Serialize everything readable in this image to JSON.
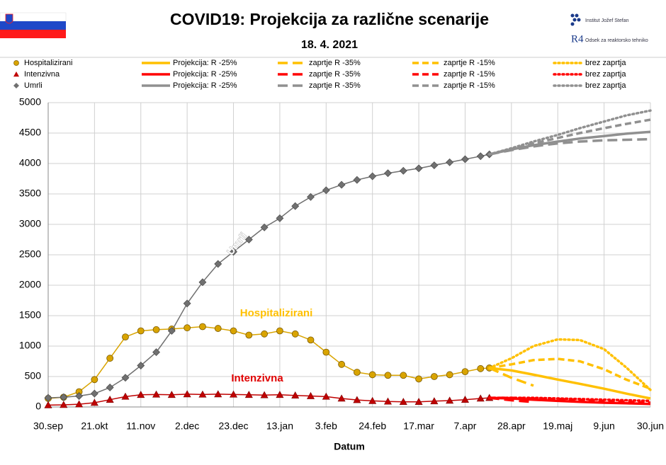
{
  "chart_data": {
    "type": "line",
    "title": "COVID19: Projekcija za različne scenarije",
    "subtitle": "18. 4. 2021",
    "logos": [
      "Institut Jožef Stefan",
      "Odsek za reaktorsko tehniko"
    ],
    "logo_mark": "R4",
    "x_label": "Datum",
    "xlim": [
      "30.sep",
      "30.jun"
    ],
    "xticks": [
      "30.sep",
      "21.okt",
      "11.nov",
      "2.dec",
      "23.dec",
      "13.jan",
      "3.feb",
      "24.feb",
      "17.mar",
      "7.apr",
      "28.apr",
      "19.maj",
      "9.jun",
      "30.jun"
    ],
    "ylim": [
      0,
      5000
    ],
    "yticks": [
      0,
      500,
      1000,
      1500,
      2000,
      2500,
      3000,
      3500,
      4000,
      4500,
      5000
    ],
    "grid": true,
    "annotations": [
      "Umrli",
      "Hospitalizirani",
      "Intenzivna"
    ],
    "x": [
      "30.sep",
      "7.okt",
      "14.okt",
      "21.okt",
      "28.okt",
      "4.nov",
      "11.nov",
      "18.nov",
      "25.nov",
      "2.dec",
      "9.dec",
      "16.dec",
      "23.dec",
      "30.dec",
      "6.jan",
      "13.jan",
      "20.jan",
      "27.jan",
      "3.feb",
      "10.feb",
      "17.feb",
      "24.feb",
      "3.mar",
      "10.mar",
      "17.mar",
      "24.mar",
      "31.mar",
      "7.apr",
      "14.apr",
      "18.apr"
    ],
    "series": [
      {
        "name": "Hospitalizirani",
        "color": "#d9a400",
        "marker": "circle",
        "values": [
          140,
          160,
          250,
          450,
          800,
          1150,
          1250,
          1270,
          1280,
          1300,
          1320,
          1290,
          1250,
          1180,
          1200,
          1250,
          1200,
          1100,
          900,
          700,
          570,
          530,
          520,
          520,
          460,
          500,
          530,
          580,
          630,
          640
        ]
      },
      {
        "name": "Projekcija: R -25%",
        "color": "#ffc000",
        "line": "solid",
        "x": [
          "18.apr",
          "28.apr",
          "8.maj",
          "19.maj",
          "29.maj",
          "9.jun",
          "19.jun",
          "30.jun"
        ],
        "values": [
          640,
          600,
          530,
          450,
          380,
          300,
          220,
          140
        ]
      },
      {
        "name": "zaprtje R -35%",
        "color": "#ffc000",
        "line": "longdash",
        "x": [
          "18.apr",
          "28.apr",
          "8.maj"
        ],
        "values": [
          640,
          480,
          350
        ]
      },
      {
        "name": "zaprtje R -15%",
        "color": "#ffc000",
        "line": "dash",
        "x": [
          "18.apr",
          "28.apr",
          "8.maj",
          "19.maj",
          "29.maj",
          "9.jun",
          "19.jun",
          "30.jun"
        ],
        "values": [
          640,
          700,
          770,
          790,
          750,
          620,
          450,
          300
        ]
      },
      {
        "name": "brez zaprtja",
        "color": "#ffc000",
        "line": "dot",
        "x": [
          "18.apr",
          "28.apr",
          "8.maj",
          "19.maj",
          "29.maj",
          "9.jun",
          "19.jun",
          "30.jun"
        ],
        "values": [
          640,
          800,
          1000,
          1110,
          1100,
          950,
          650,
          280
        ]
      },
      {
        "name": "Intenzivna",
        "color": "#c00000",
        "marker": "triangle",
        "values": [
          30,
          35,
          45,
          70,
          120,
          170,
          200,
          205,
          200,
          210,
          205,
          210,
          205,
          200,
          195,
          200,
          190,
          180,
          170,
          140,
          115,
          100,
          90,
          85,
          85,
          95,
          105,
          120,
          140,
          150
        ]
      },
      {
        "name": "Projekcija: R -25%",
        "color": "#ff0000",
        "line": "solid",
        "x": [
          "18.apr",
          "28.apr",
          "8.maj",
          "19.maj",
          "29.maj",
          "9.jun",
          "19.jun",
          "30.jun"
        ],
        "values": [
          150,
          140,
          120,
          100,
          85,
          70,
          60,
          50
        ]
      },
      {
        "name": "zaprtje R -35%",
        "color": "#ff0000",
        "line": "longdash",
        "x": [
          "18.apr",
          "28.apr",
          "8.maj"
        ],
        "values": [
          150,
          110,
          80
        ]
      },
      {
        "name": "zaprtje R -15%",
        "color": "#ff0000",
        "line": "dash",
        "x": [
          "18.apr",
          "28.apr",
          "8.maj",
          "19.maj",
          "29.maj",
          "9.jun",
          "19.jun",
          "30.jun"
        ],
        "values": [
          150,
          150,
          140,
          130,
          115,
          100,
          85,
          70
        ]
      },
      {
        "name": "brez zaprtja",
        "color": "#ff0000",
        "line": "dot",
        "x": [
          "18.apr",
          "28.apr",
          "8.maj",
          "19.maj",
          "29.maj",
          "9.jun",
          "19.jun",
          "30.jun"
        ],
        "values": [
          150,
          150,
          150,
          140,
          130,
          120,
          110,
          100
        ]
      },
      {
        "name": "Umrli",
        "color": "#707070",
        "marker": "diamond",
        "values": [
          150,
          160,
          180,
          220,
          320,
          480,
          680,
          900,
          1250,
          1700,
          2050,
          2350,
          2550,
          2750,
          2950,
          3100,
          3300,
          3450,
          3560,
          3650,
          3730,
          3790,
          3840,
          3880,
          3920,
          3970,
          4020,
          4070,
          4120,
          4150
        ]
      },
      {
        "name": "Projekcija: R -25%",
        "color": "#909090",
        "line": "solid",
        "x": [
          "18.apr",
          "28.apr",
          "8.maj",
          "19.maj",
          "29.maj",
          "9.jun",
          "19.jun",
          "30.jun"
        ],
        "values": [
          4150,
          4230,
          4300,
          4360,
          4410,
          4450,
          4490,
          4520
        ]
      },
      {
        "name": "zaprtje R -35%",
        "color": "#909090",
        "line": "longdash",
        "x": [
          "18.apr",
          "28.apr",
          "8.maj",
          "19.maj",
          "29.maj",
          "9.jun",
          "19.jun",
          "30.jun"
        ],
        "values": [
          4150,
          4220,
          4280,
          4330,
          4360,
          4380,
          4390,
          4400
        ]
      },
      {
        "name": "zaprtje R -15%",
        "color": "#909090",
        "line": "dash",
        "x": [
          "18.apr",
          "28.apr",
          "8.maj",
          "19.maj",
          "29.maj",
          "9.jun",
          "19.jun",
          "30.jun"
        ],
        "values": [
          4150,
          4240,
          4330,
          4420,
          4500,
          4580,
          4650,
          4720
        ]
      },
      {
        "name": "brez zaprtja",
        "color": "#909090",
        "line": "dot",
        "x": [
          "18.apr",
          "28.apr",
          "8.maj",
          "19.maj",
          "29.maj",
          "9.jun",
          "19.jun",
          "30.jun"
        ],
        "values": [
          4150,
          4250,
          4360,
          4470,
          4580,
          4690,
          4790,
          4870
        ]
      }
    ]
  }
}
